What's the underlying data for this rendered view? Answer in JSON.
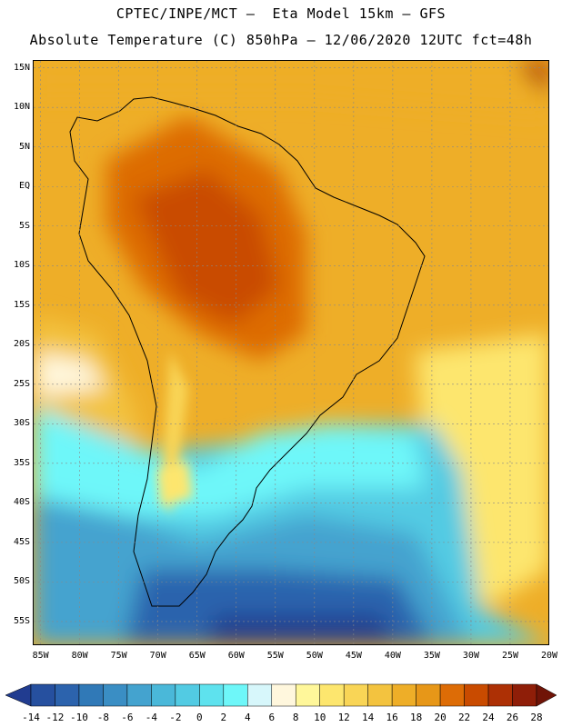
{
  "header": {
    "line1": "CPTEC/INPE/MCT –  Eta Model 15km – GFS",
    "line2": "Absolute Temperature (C) 850hPa – 12/06/2020 12UTC fct=48h"
  },
  "map": {
    "lat_labels": [
      "15N",
      "10N",
      "5N",
      "EQ",
      "5S",
      "10S",
      "15S",
      "20S",
      "25S",
      "30S",
      "35S",
      "40S",
      "45S",
      "50S",
      "55S"
    ],
    "lon_labels": [
      "85W",
      "80W",
      "75W",
      "70W",
      "65W",
      "60W",
      "55W",
      "50W",
      "45W",
      "40W",
      "35W",
      "30W",
      "25W",
      "20W"
    ],
    "lat_range": [
      -58,
      16
    ],
    "lon_range": [
      -86,
      -20
    ],
    "lat_ticks": [
      15,
      10,
      5,
      0,
      -5,
      -10,
      -15,
      -20,
      -25,
      -30,
      -35,
      -40,
      -45,
      -50,
      -55
    ],
    "lon_ticks": [
      -85,
      -80,
      -75,
      -70,
      -65,
      -60,
      -55,
      -50,
      -45,
      -40,
      -35,
      -30,
      -25,
      -20
    ]
  },
  "colorbar": {
    "labels": [
      "-14",
      "-12",
      "-10",
      "-8",
      "-6",
      "-4",
      "-2",
      "0",
      "2",
      "4",
      "6",
      "8",
      "10",
      "12",
      "14",
      "16",
      "18",
      "20",
      "22",
      "24",
      "26",
      "28"
    ],
    "colors": [
      "#213c90",
      "#26509f",
      "#2c63ad",
      "#3079b7",
      "#3a8ec4",
      "#44a3cf",
      "#4ab8d9",
      "#52cbe3",
      "#5ee2ee",
      "#6ef7f9",
      "#d7f7fb",
      "#fff7dd",
      "#fff79a",
      "#fde66e",
      "#f9d556",
      "#f3c33f",
      "#eeae28",
      "#e79718",
      "#dd6c06",
      "#c94b00",
      "#ad3005",
      "#8f1e08",
      "#701407"
    ],
    "units": "C"
  }
}
